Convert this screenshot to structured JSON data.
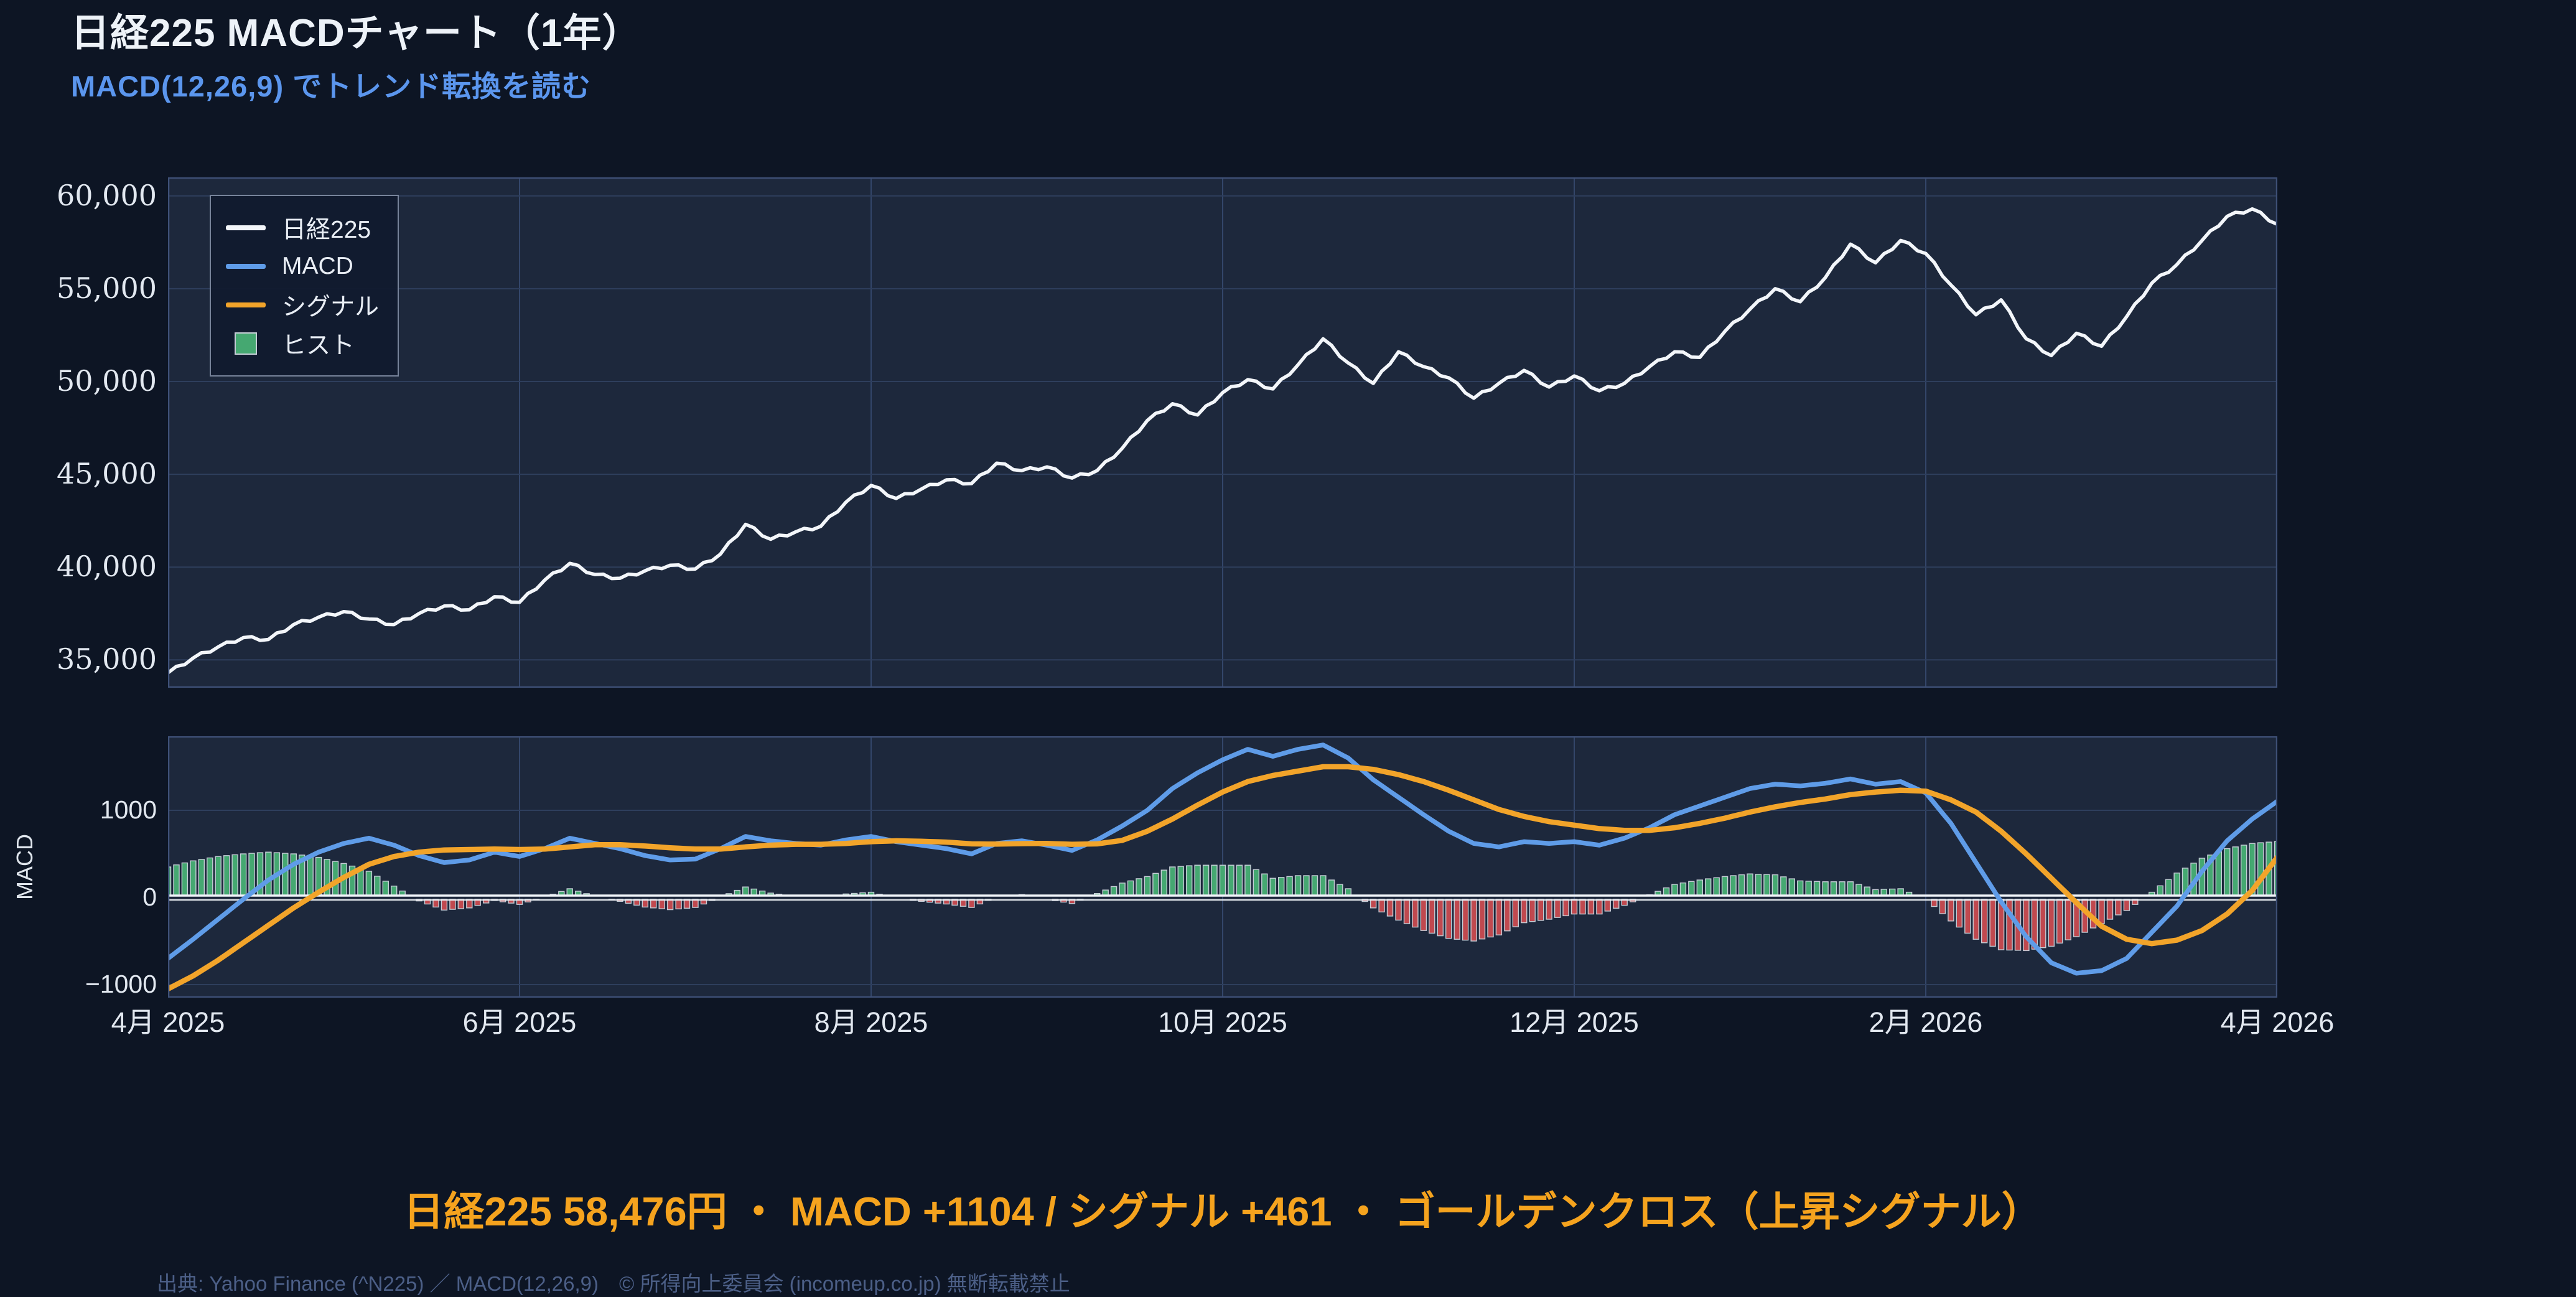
{
  "header": {
    "title": "日経225 MACDチャート（1年）",
    "subtitle": "MACD(12,26,9) でトレンド転換を読む"
  },
  "legend": {
    "items": [
      {
        "label": "日経225",
        "swatch": "line",
        "color": "#f3f6fa"
      },
      {
        "label": "MACD",
        "swatch": "line",
        "color": "#5f9ce8"
      },
      {
        "label": "シグナル",
        "swatch": "line",
        "color": "#f2a42a"
      },
      {
        "label": "ヒスト",
        "swatch": "square",
        "color": "#45a871"
      }
    ]
  },
  "summary": {
    "text": "日経225 58,476円 ・ MACD +1104 / シグナル +461 ・ ゴールデンクロス（上昇シグナル）",
    "color": "#f5a31e"
  },
  "footer": {
    "text": "出典: Yahoo Finance (^N225) ／ MACD(12,26,9)　© 所得向上委員会 (incomeup.co.jp) 無断転載禁止"
  },
  "colors": {
    "page_bg": "#0d1524",
    "plot_bg": "#1d283c",
    "grid": "#2e3e5c",
    "grid_vertical": "#33466a",
    "plot_border": "#3e5077",
    "price_line": "#f3f6fa",
    "macd_line": "#5f9ce8",
    "signal_line": "#f2a42a",
    "hist_positive": "#45a871",
    "hist_negative": "#c0494f",
    "hist_edge": "#c5cdd6",
    "zero_line": "#eef2f7"
  },
  "chart_data": [
    {
      "type": "line",
      "panel": "price",
      "legend_position": "upper left",
      "grid": true,
      "x_tick_labels": [
        "4月 2025",
        "6月 2025",
        "8月 2025",
        "10月 2025",
        "12月 2025",
        "2月 2026",
        "4月 2026"
      ],
      "y_tick_values": [
        35000,
        40000,
        45000,
        50000,
        55000,
        60000
      ],
      "y_tick_labels": [
        "35,000",
        "40,000",
        "45,000",
        "50,000",
        "55,000",
        "60,000"
      ],
      "ylim": [
        33500,
        61000
      ],
      "series": [
        {
          "name": "日経225",
          "color": "#f3f6fa",
          "values": [
            34300,
            35100,
            35700,
            36200,
            36100,
            36900,
            37300,
            37600,
            37200,
            36900,
            37500,
            37900,
            37700,
            38400,
            38100,
            39300,
            40200,
            39600,
            39400,
            39800,
            40100,
            39900,
            40700,
            42300,
            41500,
            41900,
            42200,
            43500,
            44400,
            43700,
            44200,
            44700,
            44500,
            45600,
            45200,
            45400,
            44800,
            45200,
            46400,
            47900,
            48800,
            48200,
            49400,
            50100,
            49600,
            50900,
            52300,
            51000,
            49900,
            51600,
            50800,
            50200,
            49100,
            49900,
            50600,
            49700,
            50300,
            49500,
            49900,
            50800,
            51600,
            51300,
            52700,
            53900,
            55000,
            54300,
            55600,
            57400,
            56400,
            57600,
            56900,
            55200,
            53600,
            54400,
            52300,
            51400,
            52600,
            51900,
            53500,
            55300,
            56300,
            57600,
            58900,
            59300,
            58476
          ]
        }
      ],
      "last_value": 58476
    },
    {
      "type": "macd",
      "panel": "macd",
      "ylabel": "MACD",
      "grid": true,
      "y_tick_values": [
        -1000,
        0,
        1000
      ],
      "y_tick_labels": [
        "−1000",
        "0",
        "1000"
      ],
      "ylim": [
        -1150,
        1850
      ],
      "series": [
        {
          "name": "MACD",
          "color": "#5f9ce8",
          "values": [
            -700,
            -480,
            -250,
            -20,
            200,
            380,
            520,
            620,
            680,
            600,
            480,
            400,
            430,
            520,
            470,
            560,
            680,
            620,
            560,
            480,
            430,
            440,
            560,
            700,
            650,
            620,
            600,
            660,
            700,
            640,
            600,
            560,
            500,
            620,
            650,
            600,
            540,
            660,
            820,
            1000,
            1250,
            1430,
            1580,
            1700,
            1620,
            1700,
            1750,
            1600,
            1350,
            1150,
            950,
            760,
            620,
            580,
            640,
            620,
            640,
            600,
            680,
            800,
            950,
            1050,
            1150,
            1250,
            1300,
            1280,
            1310,
            1360,
            1300,
            1330,
            1200,
            850,
            400,
            -50,
            -450,
            -750,
            -870,
            -840,
            -700,
            -400,
            -100,
            300,
            650,
            900,
            1104
          ]
        },
        {
          "name": "シグナル",
          "color": "#f2a42a",
          "values": [
            -1050,
            -900,
            -720,
            -520,
            -320,
            -120,
            60,
            230,
            380,
            470,
            520,
            545,
            550,
            555,
            550,
            555,
            580,
            605,
            605,
            590,
            570,
            555,
            555,
            580,
            600,
            610,
            610,
            620,
            640,
            650,
            645,
            635,
            615,
            612,
            618,
            620,
            610,
            615,
            655,
            760,
            900,
            1060,
            1210,
            1330,
            1400,
            1450,
            1500,
            1500,
            1470,
            1410,
            1330,
            1230,
            1120,
            1010,
            930,
            870,
            830,
            790,
            770,
            770,
            800,
            850,
            910,
            980,
            1040,
            1090,
            1130,
            1180,
            1210,
            1230,
            1220,
            1120,
            980,
            760,
            500,
            220,
            -60,
            -330,
            -480,
            -530,
            -490,
            -380,
            -190,
            80,
            461
          ]
        },
        {
          "name": "ヒスト",
          "type": "bar",
          "color_positive": "#45a871",
          "color_negative": "#c0494f",
          "values": [
            350,
            420,
            470,
            500,
            520,
            500,
            460,
            390,
            300,
            130,
            -40,
            -145,
            -120,
            -35,
            -80,
            5,
            100,
            15,
            -45,
            -110,
            -140,
            -115,
            5,
            120,
            50,
            10,
            -10,
            40,
            60,
            -10,
            -45,
            -75,
            -115,
            8,
            32,
            -20,
            -70,
            45,
            165,
            240,
            350,
            370,
            370,
            370,
            220,
            250,
            250,
            100,
            -120,
            -260,
            -380,
            -470,
            -500,
            -430,
            -290,
            -250,
            -190,
            -190,
            -90,
            30,
            150,
            200,
            240,
            270,
            260,
            190,
            180,
            180,
            90,
            100,
            -20,
            -270,
            -480,
            -600,
            -610,
            -560,
            -450,
            -300,
            -150,
            60,
            280,
            450,
            560,
            620,
            643
          ]
        }
      ],
      "last_macd": 1104,
      "last_signal": 461
    }
  ]
}
